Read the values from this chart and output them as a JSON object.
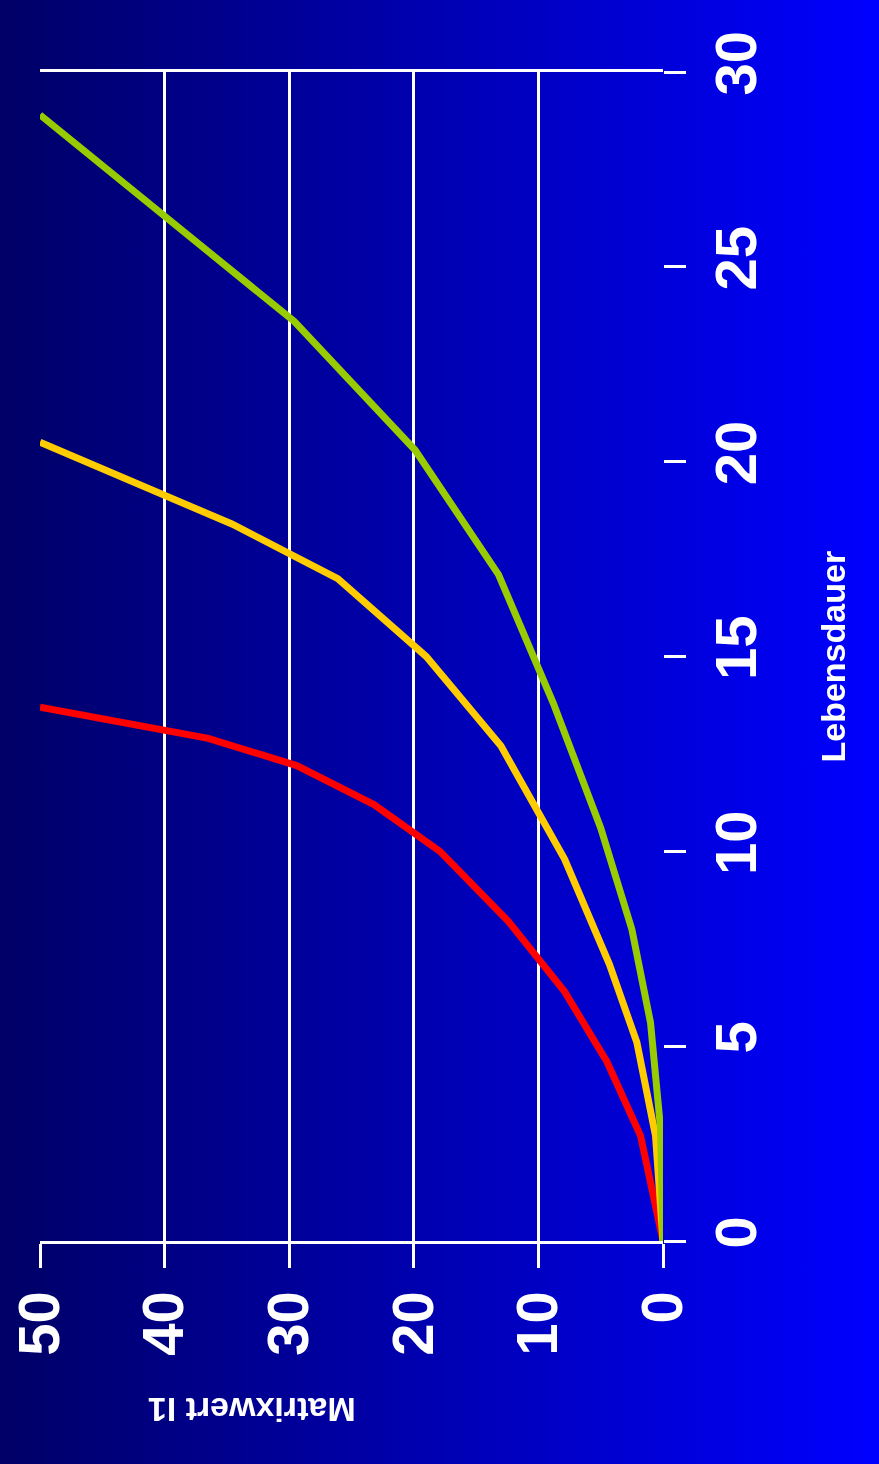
{
  "chart_data": {
    "type": "line",
    "xlabel": "Matrixwert I1",
    "ylabel": "Lebensdauer",
    "xlim": [
      50,
      0
    ],
    "xticks": [
      0,
      10,
      20,
      30,
      40,
      50
    ],
    "ylim": [
      0,
      30
    ],
    "yticks": [
      0,
      5,
      10,
      15,
      20,
      25,
      30
    ],
    "grid": "x",
    "series": [
      {
        "color": "#ff0000",
        "values": [
          0,
          2.7,
          4.6,
          6.4,
          8.2,
          10.0,
          11.2,
          12.2,
          12.9,
          13.7
        ],
        "x": [
          0,
          1.8,
          4.5,
          7.9,
          12.4,
          17.9,
          23.2,
          29.4,
          36.5,
          50
        ]
      },
      {
        "color": "#ffcc00",
        "values": [
          0,
          2.7,
          5.1,
          7.1,
          9.8,
          12.7,
          15.0,
          17.0,
          18.4,
          20.5
        ],
        "x": [
          0,
          0.6,
          2.1,
          4.3,
          7.9,
          13.0,
          19.0,
          26.1,
          34.6,
          50
        ]
      },
      {
        "color": "#99cc00",
        "values": [
          0,
          2.9,
          5.6,
          8.0,
          10.6,
          13.8,
          17.1,
          20.3,
          23.6,
          28.9
        ],
        "x": [
          0,
          0.2,
          1.0,
          2.5,
          5.0,
          8.8,
          13.2,
          19.9,
          29.6,
          50
        ]
      }
    ]
  }
}
